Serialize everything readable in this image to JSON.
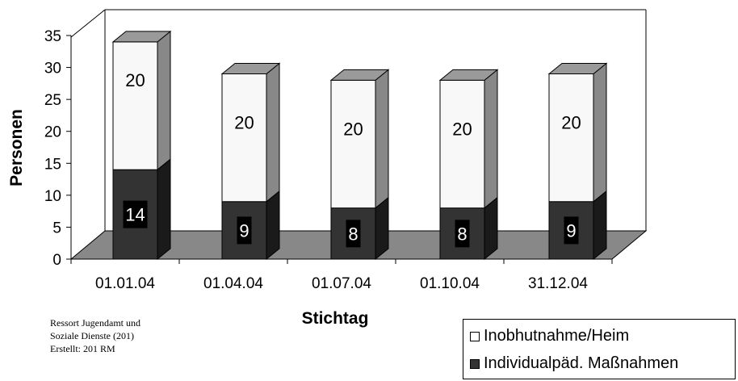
{
  "chart_data": {
    "type": "bar",
    "stacked": true,
    "three_d": true,
    "categories": [
      "01.01.04",
      "01.04.04",
      "01.07.04",
      "01.10.04",
      "31.12.04"
    ],
    "series": [
      {
        "name": "Individualpäd. Maßnahmen",
        "values": [
          14,
          9,
          8,
          8,
          9
        ],
        "color": "#333333",
        "side_color": "#1a1a1a",
        "top_color": "#555555",
        "label_color": "#ffffff"
      },
      {
        "name": "Inobhutnahme/Heim",
        "values": [
          20,
          20,
          20,
          20,
          20
        ],
        "color": "#f8f8f8",
        "side_color": "#888888",
        "top_color": "#9a9a9a",
        "label_color": "#000000"
      }
    ],
    "data_labels": [
      [
        "14",
        "9",
        "8",
        "8",
        "9"
      ],
      [
        "20",
        "20",
        "20",
        "20",
        "20"
      ]
    ],
    "xlabel": "Stichtag",
    "ylabel": "Personen",
    "yticks": [
      "0",
      "5",
      "10",
      "15",
      "20",
      "25",
      "30",
      "35"
    ],
    "ylim": [
      0,
      35
    ],
    "legend_placement": "bottom-right"
  },
  "footnote": {
    "line1": "Ressort Jugendamt und",
    "line2": "Soziale Dienste (201)",
    "line3": "Erstellt: 201 RM"
  },
  "legend": {
    "item1": "Inobhutnahme/Heim",
    "item2": "Individualpäd. Maßnahmen"
  }
}
